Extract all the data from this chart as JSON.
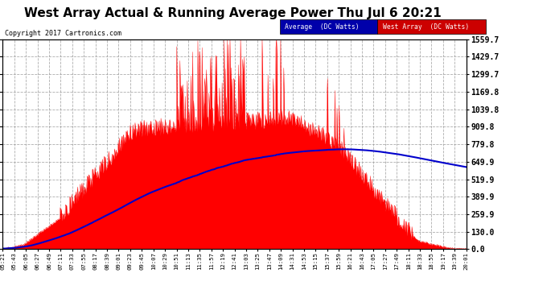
{
  "title": "West Array Actual & Running Average Power Thu Jul 6 20:21",
  "copyright": "Copyright 2017 Cartronics.com",
  "ylabel_right_ticks": [
    0.0,
    130.0,
    259.9,
    389.9,
    519.9,
    649.9,
    779.8,
    909.8,
    1039.8,
    1169.8,
    1299.7,
    1429.7,
    1559.7
  ],
  "ymax": 1559.7,
  "ymin": 0.0,
  "bg_color": "#ffffff",
  "plot_bg_color": "#ffffff",
  "grid_color": "#999999",
  "fill_color": "#ff0000",
  "line_color": "#0000cc",
  "legend_avg_bg": "#0000aa",
  "legend_west_bg": "#cc0000",
  "title_fontsize": 11,
  "copyright_fontsize": 6,
  "tick_fontsize": 6,
  "ytick_fontsize": 7
}
